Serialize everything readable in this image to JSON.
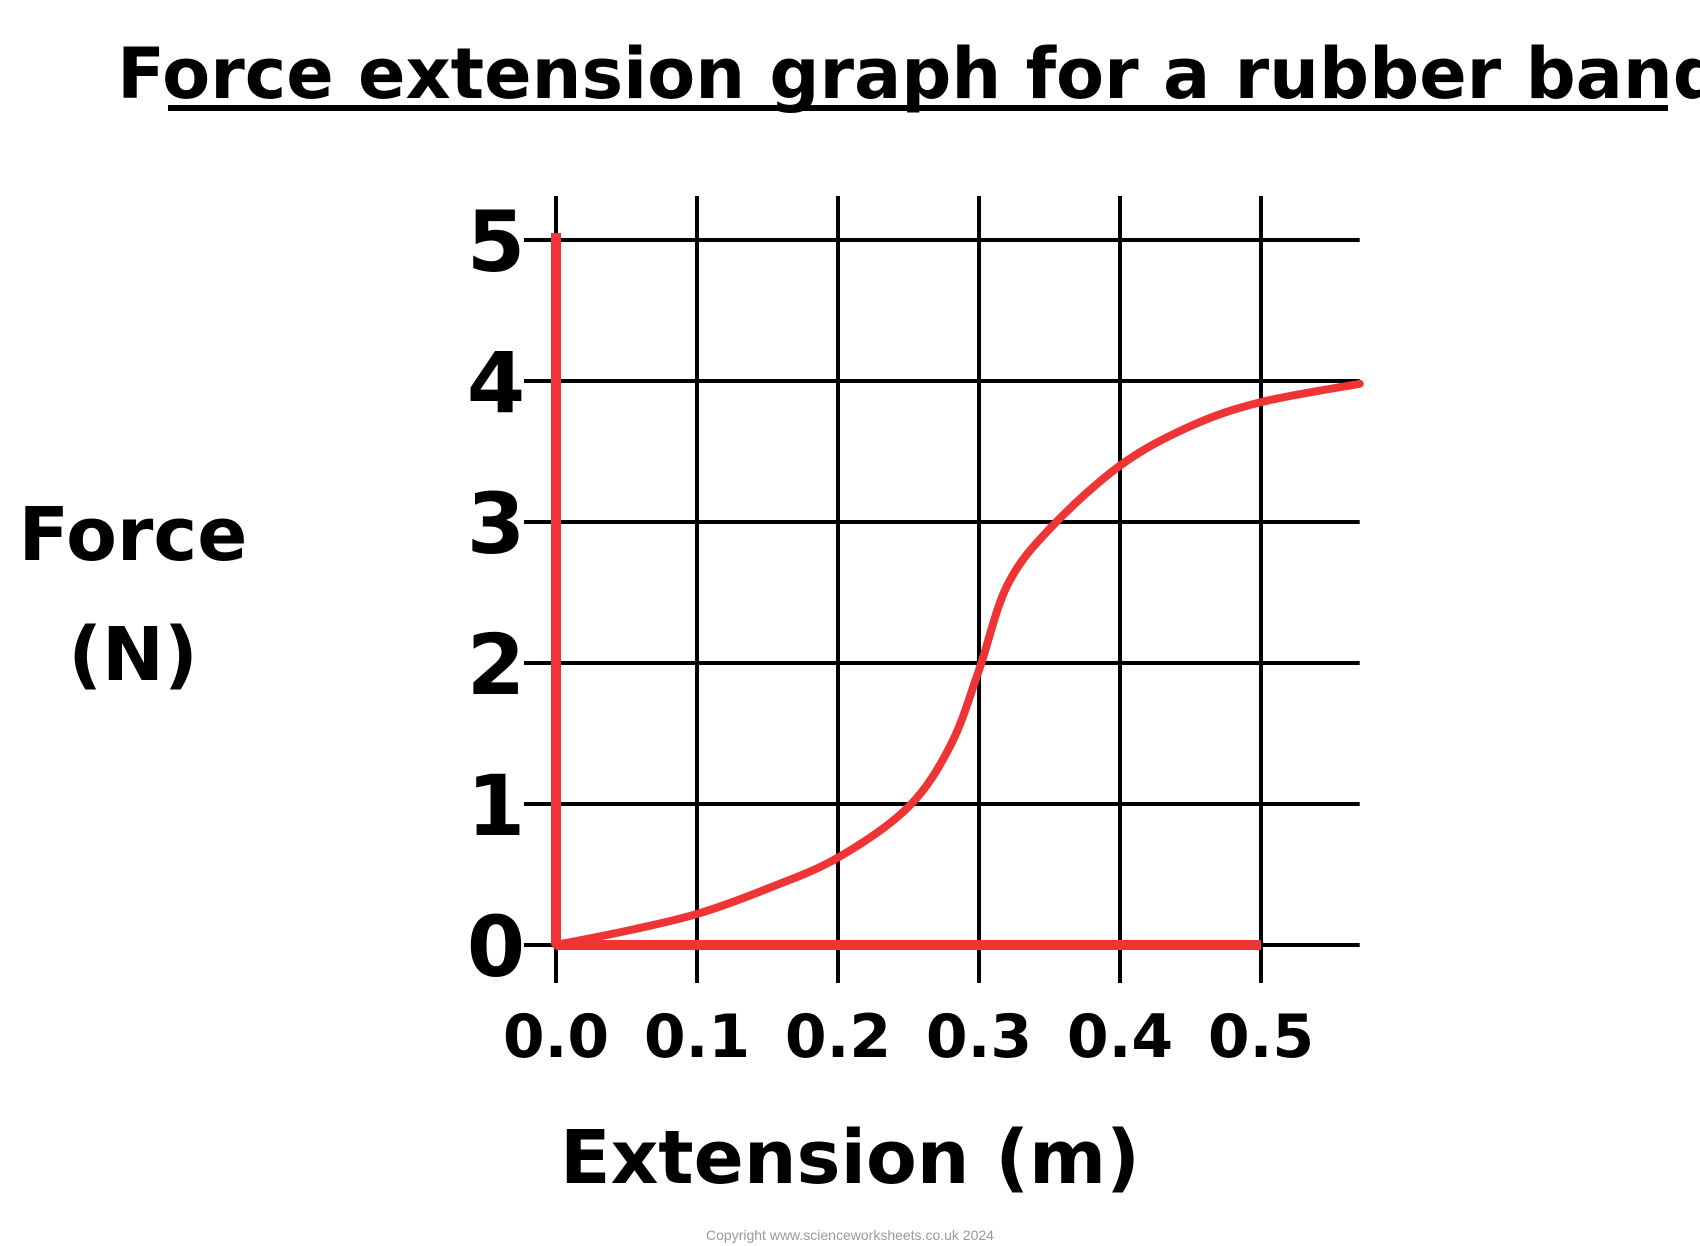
{
  "chart_data": {
    "type": "line",
    "title": "Force extension graph for a rubber band",
    "xlabel": "Extension (m)",
    "ylabel_lines": [
      "Force",
      "(N)"
    ],
    "x_ticks": [
      "0.0",
      "0.1",
      "0.2",
      "0.3",
      "0.4",
      "0.5"
    ],
    "y_ticks": [
      "0",
      "1",
      "2",
      "3",
      "4",
      "5"
    ],
    "xlim": [
      0,
      0.57
    ],
    "ylim": [
      0,
      5
    ],
    "grid": true,
    "legend": "none",
    "series": [
      {
        "x": [
          0.0,
          0.05,
          0.1,
          0.15,
          0.2,
          0.25,
          0.28,
          0.3,
          0.32,
          0.35,
          0.4,
          0.45,
          0.5,
          0.57
        ],
        "y": [
          0.0,
          0.1,
          0.22,
          0.4,
          0.62,
          0.98,
          1.42,
          1.95,
          2.55,
          2.95,
          3.4,
          3.68,
          3.85,
          3.98
        ],
        "color": "#ee3434"
      }
    ],
    "axis_lines": {
      "color": "#ee3434",
      "y_axis_top": 5.05,
      "x_axis_end": 0.5
    }
  },
  "footer": {
    "copyright": "Copyright www.scienceworksheets.co.uk 2024"
  }
}
